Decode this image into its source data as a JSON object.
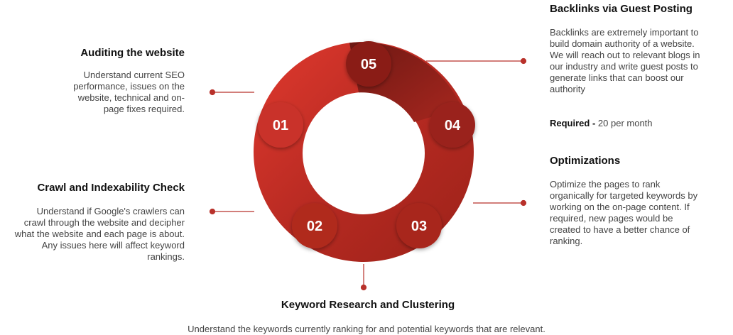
{
  "colors": {
    "ring_light": "#d9352b",
    "ring_mid": "#b22a22",
    "ring_dark": "#7a1b16",
    "connector": "#b8312a"
  },
  "steps": [
    {
      "number": "01",
      "title": "Auditing the website",
      "description": "Understand current SEO performance, issues on the website, technical and on-page fixes required."
    },
    {
      "number": "02",
      "title": "Crawl and Indexability Check",
      "description": "Understand if Google's crawlers can crawl through the website and decipher what the website and each page is about. Any issues here will affect keyword rankings."
    },
    {
      "number": "03",
      "title": "Keyword Research and Clustering",
      "description": "Understand the keywords currently ranking for and potential keywords that are relevant."
    },
    {
      "number": "04",
      "title": "Optimizations",
      "description": "Optimize the pages to rank organically for targeted keywords by working on the on-page content. If required, new pages would be created to have a better chance of ranking."
    },
    {
      "number": "05",
      "title": "Backlinks via Guest Posting",
      "description": "Backlinks are extremely important to build domain authority of a website. We will reach out to relevant blogs in our industry and write guest posts to generate links that can boost our authority",
      "required_label": "Required -",
      "required_value": "20 per month"
    }
  ]
}
